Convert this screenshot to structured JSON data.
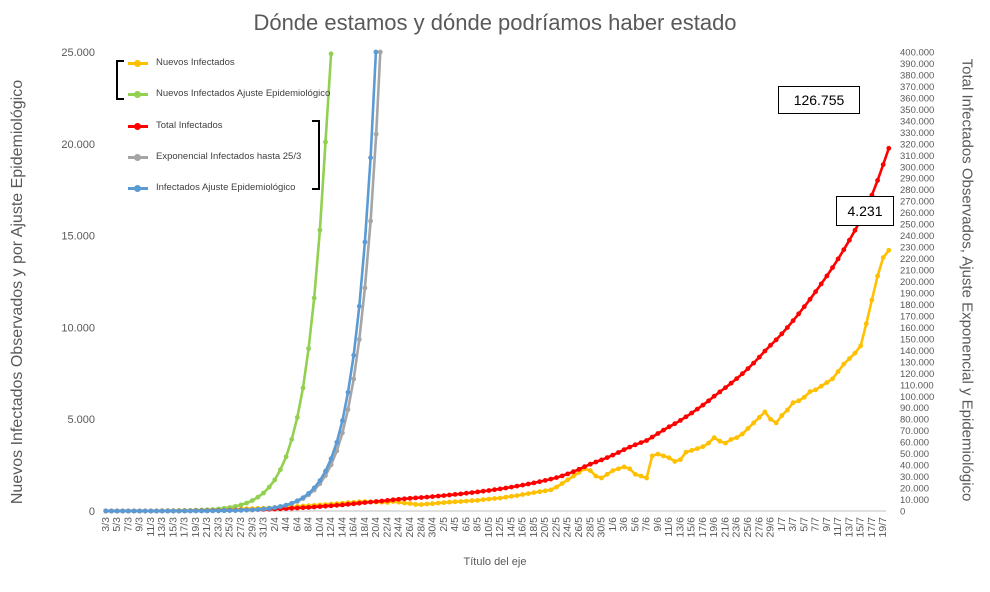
{
  "chart_data": {
    "type": "line",
    "title": "Dónde estamos y dónde podríamos haber estado",
    "xlabel": "Título del eje",
    "ylabel_left": "Nuevos Infectados Observados y por Ajuste Epidemiológico",
    "ylabel_right": "Total Infectados Observados, Ajuste Exponencial y Epidemiológico",
    "ylim_left": [
      0,
      25000
    ],
    "ylim_right": [
      0,
      400000
    ],
    "yticks_left": [
      "0",
      "5.000",
      "10.000",
      "15.000",
      "20.000",
      "25.000"
    ],
    "yticks_right": [
      "0",
      "10.000",
      "20.000",
      "30.000",
      "40.000",
      "50.000",
      "60.000",
      "70.000",
      "80.000",
      "90.000",
      "100.000",
      "110.000",
      "120.000",
      "130.000",
      "140.000",
      "150.000",
      "160.000",
      "170.000",
      "180.000",
      "190.000",
      "200.000",
      "210.000",
      "220.000",
      "230.000",
      "240.000",
      "250.000",
      "260.000",
      "270.000",
      "280.000",
      "290.000",
      "300.000",
      "310.000",
      "320.000",
      "330.000",
      "340.000",
      "350.000",
      "360.000",
      "370.000",
      "380.000",
      "390.000",
      "400.000"
    ],
    "x_tick_labels": [
      "3/3",
      "5/3",
      "7/3",
      "9/3",
      "11/3",
      "13/3",
      "15/3",
      "17/3",
      "19/3",
      "21/3",
      "23/3",
      "25/3",
      "27/3",
      "29/3",
      "31/3",
      "2/4",
      "4/4",
      "6/4",
      "8/4",
      "10/4",
      "12/4",
      "14/4",
      "16/4",
      "18/4",
      "20/4",
      "22/4",
      "24/4",
      "26/4",
      "28/4",
      "30/4",
      "2/5",
      "4/5",
      "6/5",
      "8/5",
      "10/5",
      "12/5",
      "14/5",
      "16/5",
      "18/5",
      "20/5",
      "22/5",
      "24/5",
      "26/5",
      "28/5",
      "30/5",
      "1/6",
      "3/6",
      "5/6",
      "7/6",
      "9/6",
      "11/6",
      "13/6",
      "15/6",
      "17/6",
      "19/6",
      "21/6",
      "23/6",
      "25/6",
      "27/6",
      "29/6",
      "1/7",
      "3/7",
      "5/7",
      "7/7",
      "9/7",
      "11/7",
      "13/7",
      "15/7",
      "17/7",
      "19/7"
    ],
    "day_count": 139,
    "grid": false,
    "legend_position": "top-left",
    "annotations": [
      {
        "text": "126.755",
        "target": "Total Infectados"
      },
      {
        "text": "4.231",
        "target": "Nuevos Infectados"
      }
    ],
    "series": [
      {
        "name": "Nuevos Infectados",
        "axis": "left",
        "color": "#FFC000",
        "values": [
          1,
          0,
          0,
          0,
          2,
          3,
          5,
          8,
          10,
          12,
          14,
          18,
          20,
          25,
          30,
          35,
          40,
          45,
          50,
          60,
          70,
          80,
          90,
          100,
          110,
          120,
          130,
          140,
          150,
          165,
          180,
          200,
          210,
          230,
          250,
          270,
          290,
          310,
          330,
          350,
          380,
          400,
          420,
          450,
          470,
          500,
          510,
          500,
          490,
          480,
          470,
          520,
          480,
          430,
          410,
          360,
          350,
          380,
          400,
          430,
          460,
          480,
          500,
          520,
          540,
          560,
          580,
          620,
          650,
          680,
          700,
          750,
          800,
          840,
          900,
          950,
          1000,
          1050,
          1100,
          1150,
          1300,
          1500,
          1700,
          1900,
          2100,
          2300,
          2200,
          1900,
          1800,
          2000,
          2200,
          2300,
          2400,
          2300,
          2000,
          1900,
          1800,
          3000,
          3100,
          3000,
          2900,
          2700,
          2800,
          3200,
          3300,
          3400,
          3500,
          3700,
          4000,
          3800,
          3700,
          3900,
          4000,
          4200,
          4500,
          4800,
          5100,
          5400,
          5000,
          4800,
          5200,
          5500,
          5900,
          6000,
          6200,
          6500,
          6600,
          6800,
          7000,
          7200,
          7600,
          8000,
          8300,
          8600,
          9000,
          10200,
          11500,
          12800,
          13800,
          14200
        ]
      },
      {
        "name": "Nuevos Infectados Ajuste Epidemiológico",
        "axis": "left",
        "color": "#92D050",
        "values": [
          0,
          0,
          0,
          0,
          1,
          1,
          2,
          3,
          4,
          5,
          7,
          9,
          12,
          16,
          21,
          28,
          37,
          49,
          64,
          84,
          110,
          145,
          190,
          250,
          330,
          430,
          570,
          750,
          980,
          1300,
          1700,
          2250,
          2950,
          3900,
          5100,
          6700,
          8850,
          11600,
          15300,
          20100,
          24900
        ]
      },
      {
        "name": "Total Infectados",
        "axis": "right",
        "color": "#FF0000",
        "values": [
          1,
          1,
          1,
          1,
          3,
          6,
          11,
          19,
          29,
          41,
          55,
          73,
          93,
          118,
          148,
          183,
          223,
          268,
          318,
          378,
          448,
          528,
          618,
          718,
          828,
          948,
          1078,
          1218,
          1368,
          1533,
          1713,
          1913,
          2123,
          2353,
          2603,
          2873,
          3163,
          3473,
          3803,
          4153,
          4533,
          4933,
          5353,
          5803,
          6273,
          6773,
          7283,
          7783,
          8273,
          8753,
          9223,
          9743,
          10223,
          10653,
          11063,
          11423,
          11773,
          12153,
          12553,
          12983,
          13443,
          13923,
          14423,
          14943,
          15483,
          16043,
          16623,
          17243,
          17893,
          18573,
          19273,
          20023,
          20823,
          21663,
          22563,
          23513,
          24513,
          25563,
          26663,
          27813,
          29113,
          30613,
          32313,
          34213,
          36313,
          38613,
          40813,
          42713,
          44513,
          46513,
          48713,
          51013,
          53413,
          55713,
          57713,
          59613,
          61413,
          64413,
          67513,
          70513,
          73413,
          76113,
          78913,
          82113,
          85413,
          88813,
          92313,
          96013,
          100013,
          103813,
          107513,
          111413,
          115413,
          119613,
          124113,
          128913,
          134013,
          139413,
          144413,
          149213,
          154413,
          159913,
          165813,
          171813,
          178013,
          184513,
          191113,
          197913,
          204913,
          212113,
          219713,
          227713,
          236013,
          244613,
          253613,
          263813,
          275313,
          288113,
          301913,
          316113
        ]
      },
      {
        "name": "Exponencial Infectados hasta 25/3",
        "axis": "right",
        "color": "#A5A5A5",
        "values": [
          1,
          1,
          2,
          2,
          3,
          4,
          5,
          7,
          9,
          12,
          15,
          20,
          26,
          34,
          44,
          57,
          74,
          96,
          125,
          163,
          212,
          275,
          358,
          465,
          605,
          786,
          1022,
          1329,
          1728,
          2246,
          2920,
          3796,
          4935,
          6415,
          8340,
          10842,
          14094,
          18323,
          23820,
          30966,
          40256,
          52333,
          68033,
          88443,
          114976,
          149469,
          194310,
          252603,
          328384,
          426899
        ]
      },
      {
        "name": "Infectados Ajuste Epidemiológico",
        "axis": "right",
        "color": "#5B9BD5",
        "values": [
          1,
          1,
          1,
          2,
          2,
          3,
          4,
          5,
          7,
          9,
          12,
          16,
          21,
          28,
          37,
          49,
          64,
          84,
          110,
          145,
          190,
          250,
          330,
          430,
          570,
          750,
          980,
          1300,
          1700,
          2250,
          2950,
          3900,
          5100,
          6700,
          8850,
          11600,
          15300,
          20100,
          26400,
          34700,
          45600,
          59900,
          78700,
          103400,
          135800,
          178400,
          234400,
          307900,
          404500
        ]
      }
    ]
  }
}
